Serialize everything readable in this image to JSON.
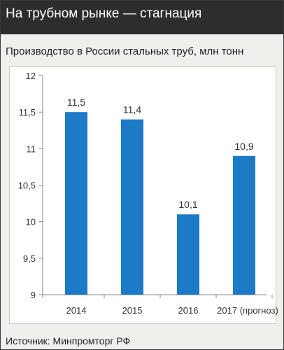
{
  "header": {
    "title": "На трубном рынке — стагнация"
  },
  "footer": {
    "source": "Источник: Минпромторг РФ"
  },
  "chart_data": {
    "type": "bar",
    "title": "Производство в России стальных труб, млн тонн",
    "categories": [
      "2014",
      "2015",
      "2016",
      "2017 (прогноз)"
    ],
    "values": [
      11.5,
      11.4,
      10.1,
      10.9
    ],
    "value_labels": [
      "11,5",
      "11,4",
      "10,1",
      "10,9"
    ],
    "ylim": [
      9,
      12
    ],
    "yticks": [
      9,
      9.5,
      10,
      10.5,
      11,
      11.5,
      12
    ],
    "ytick_labels": [
      "9",
      "9,5",
      "10",
      "10,5",
      "11",
      "11,5",
      "12"
    ],
    "xlabel": "",
    "ylabel": "",
    "grid": false,
    "bar_color": "#1c7ac6",
    "axis_color": "#888888"
  }
}
